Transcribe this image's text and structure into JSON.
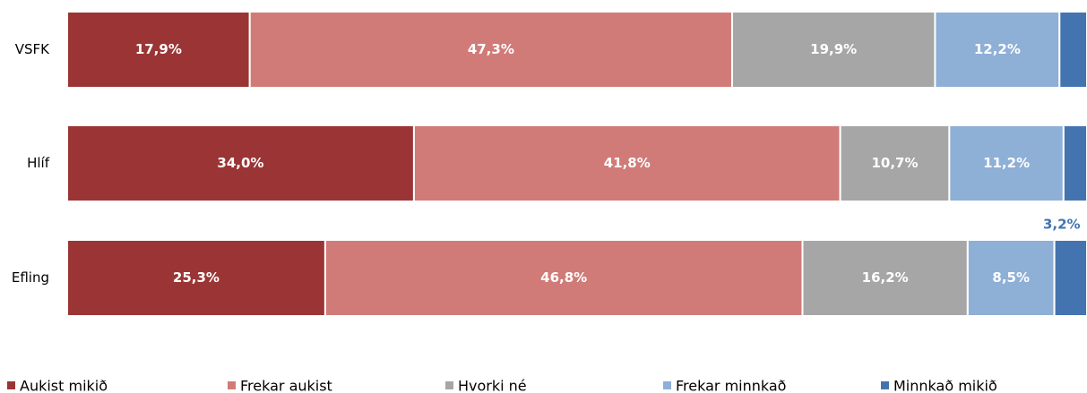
{
  "chart_data": {
    "type": "stacked-bar-horizontal",
    "categories": [
      "VSFK",
      "Hlíf",
      "Efling"
    ],
    "xlim": [
      0,
      100
    ],
    "series": [
      {
        "name": "Aukist mikið",
        "color": "#9b3535",
        "values": [
          17.9,
          34.0,
          25.3
        ],
        "value_labels": [
          "17,9%",
          "34,0%",
          "25,3%"
        ]
      },
      {
        "name": "Frekar aukist",
        "color": "#d07b78",
        "values": [
          47.3,
          41.8,
          46.8
        ],
        "value_labels": [
          "47,3%",
          "41,8%",
          "46,8%"
        ]
      },
      {
        "name": "Hvorki né",
        "color": "#a6a6a6",
        "values": [
          19.9,
          10.7,
          16.2
        ],
        "value_labels": [
          "19,9%",
          "10,7%",
          "16,2%"
        ]
      },
      {
        "name": "Frekar minnkað",
        "color": "#8eafd6",
        "values": [
          12.2,
          11.2,
          8.5
        ],
        "value_labels": [
          "12,2%",
          "11,2%",
          "8,5%"
        ]
      },
      {
        "name": "Minnkað mikið",
        "color": "#4474b0",
        "values": [
          2.7,
          2.3,
          3.2
        ],
        "value_labels": [
          null,
          null,
          "3,2%"
        ]
      }
    ],
    "legend": "bottom"
  }
}
